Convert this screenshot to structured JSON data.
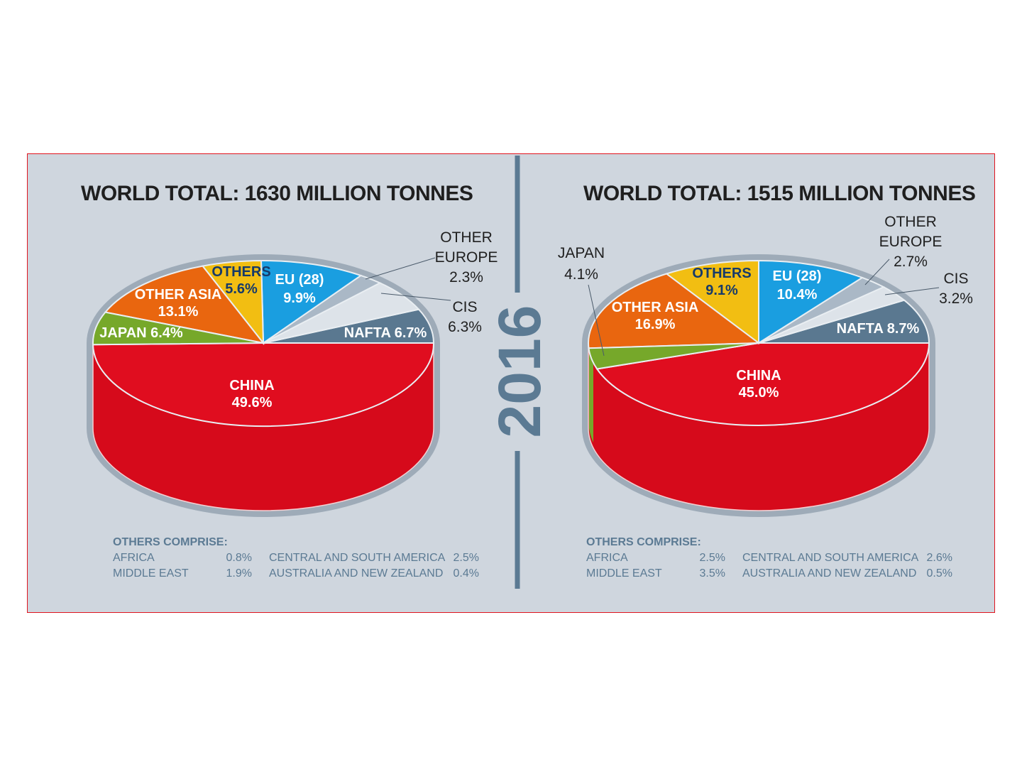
{
  "year": "2016",
  "colors": {
    "panel_bg": "#cfd6de",
    "border": "#e0141e",
    "divider": "#5b7a93",
    "china": "#e00d1f",
    "china_side": "#d60a1b",
    "japan": "#76a82a",
    "other_asia": "#e9660f",
    "others": "#f2be12",
    "eu": "#1a9ee0",
    "other_europe": "#aab8c6",
    "cis": "#dde3e9",
    "nafta": "#5a7890"
  },
  "chart_data": [
    {
      "type": "pie",
      "title": "WORLD TOTAL: 1630 MILLION TONNES",
      "total_million_tonnes": 1630,
      "slices": [
        {
          "key": "china",
          "name": "CHINA",
          "value": 49.6,
          "pct": "49.6%"
        },
        {
          "key": "japan",
          "name": "JAPAN",
          "value": 6.4,
          "pct": "6.4%"
        },
        {
          "key": "other_asia",
          "name": "OTHER ASIA",
          "value": 13.1,
          "pct": "13.1%"
        },
        {
          "key": "others",
          "name": "OTHERS",
          "value": 5.6,
          "pct": "5.6%"
        },
        {
          "key": "eu",
          "name": "EU (28)",
          "value": 9.9,
          "pct": "9.9%"
        },
        {
          "key": "other_europe",
          "name": "OTHER EUROPE",
          "value": 2.3,
          "pct": "2.3%"
        },
        {
          "key": "cis",
          "name": "CIS",
          "value": 6.3,
          "pct": "6.3%"
        },
        {
          "key": "nafta",
          "name": "NAFTA",
          "value": 6.7,
          "pct": "6.7%"
        }
      ],
      "others_comprise": {
        "heading": "OTHERS COMPRISE:",
        "items": [
          {
            "name": "AFRICA",
            "pct": "0.8%"
          },
          {
            "name": "CENTRAL AND SOUTH AMERICA",
            "pct": "2.5%"
          },
          {
            "name": "MIDDLE EAST",
            "pct": "1.9%"
          },
          {
            "name": "AUSTRALIA AND NEW ZEALAND",
            "pct": "0.4%"
          }
        ]
      }
    },
    {
      "type": "pie",
      "title": "WORLD TOTAL: 1515 MILLION TONNES",
      "total_million_tonnes": 1515,
      "slices": [
        {
          "key": "china",
          "name": "CHINA",
          "value": 45.0,
          "pct": "45.0%"
        },
        {
          "key": "japan",
          "name": "JAPAN",
          "value": 4.1,
          "pct": "4.1%"
        },
        {
          "key": "other_asia",
          "name": "OTHER ASIA",
          "value": 16.9,
          "pct": "16.9%"
        },
        {
          "key": "others",
          "name": "OTHERS",
          "value": 9.1,
          "pct": "9.1%"
        },
        {
          "key": "eu",
          "name": "EU (28)",
          "value": 10.4,
          "pct": "10.4%"
        },
        {
          "key": "other_europe",
          "name": "OTHER EUROPE",
          "value": 2.7,
          "pct": "2.7%"
        },
        {
          "key": "cis",
          "name": "CIS",
          "value": 3.2,
          "pct": "3.2%"
        },
        {
          "key": "nafta",
          "name": "NAFTA",
          "value": 8.7,
          "pct": "8.7%"
        }
      ],
      "others_comprise": {
        "heading": "OTHERS COMPRISE:",
        "items": [
          {
            "name": "AFRICA",
            "pct": "2.5%"
          },
          {
            "name": "CENTRAL AND SOUTH AMERICA",
            "pct": "2.6%"
          },
          {
            "name": "MIDDLE EAST",
            "pct": "3.5%"
          },
          {
            "name": "AUSTRALIA AND NEW ZEALAND",
            "pct": "0.5%"
          }
        ]
      }
    }
  ]
}
